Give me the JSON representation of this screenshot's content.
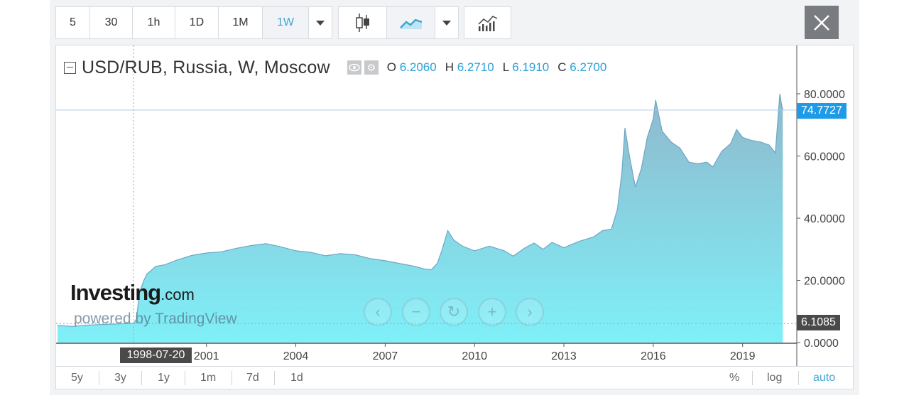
{
  "toolbar": {
    "intervals": [
      "5",
      "30",
      "1h",
      "1D",
      "1M",
      "1W"
    ],
    "active_interval": "1W",
    "chart_type_icons": [
      "candlestick-icon",
      "line-chart-icon"
    ],
    "indicators_icon": "indicators-icon"
  },
  "legend": {
    "title": "USD/RUB, Russia, W, Moscow",
    "o_label": "O",
    "o_value": "6.2060",
    "h_label": "H",
    "h_value": "6.2710",
    "l_label": "L",
    "l_value": "6.1910",
    "c_label": "C",
    "c_value": "6.2700"
  },
  "watermark": {
    "brand": "Investing",
    "brand_suffix": ".com",
    "powered": "powered by TradingView"
  },
  "axis_tags": {
    "last_price": "74.7727",
    "crosshair_price": "6.1085",
    "crosshair_date": "1998-07-20"
  },
  "bottom_bar": {
    "ranges": [
      "5y",
      "3y",
      "1y",
      "1m",
      "7d",
      "1d"
    ],
    "options": [
      "%",
      "log",
      "auto"
    ],
    "active_option": "auto"
  },
  "colors": {
    "accent": "#3fa5d4",
    "area_top": "#8fb8cc",
    "area_bottom": "#7ff0f8",
    "line": "#6fa6c4",
    "last_price_tag": "#1e9be8",
    "crosshair_tag": "#4a4a4a"
  },
  "chart_data": {
    "type": "area",
    "title": "USD/RUB, Russia, W, Moscow",
    "xlabel": "",
    "ylabel": "",
    "x_ticks": [
      "2001",
      "2004",
      "2007",
      "2010",
      "2013",
      "2016",
      "2019"
    ],
    "y_ticks": [
      "0.0000",
      "20.0000",
      "40.0000",
      "60.0000",
      "80.0000"
    ],
    "xlim": [
      1996.0,
      2020.7
    ],
    "ylim": [
      0,
      80
    ],
    "grid": false,
    "series": [
      {
        "points": [
          [
            1996.0,
            5.5
          ],
          [
            1996.5,
            5.2
          ],
          [
            1997.0,
            5.6
          ],
          [
            1997.5,
            5.8
          ],
          [
            1998.0,
            6.0
          ],
          [
            1998.55,
            6.2
          ],
          [
            1998.65,
            7.5
          ],
          [
            1998.75,
            16.0
          ],
          [
            1998.9,
            20.0
          ],
          [
            1999.0,
            22.0
          ],
          [
            1999.3,
            24.5
          ],
          [
            1999.6,
            25.0
          ],
          [
            2000.0,
            26.5
          ],
          [
            2000.5,
            28.0
          ],
          [
            2001.0,
            28.8
          ],
          [
            2001.5,
            29.2
          ],
          [
            2002.0,
            30.3
          ],
          [
            2002.5,
            31.2
          ],
          [
            2003.0,
            31.8
          ],
          [
            2003.5,
            30.8
          ],
          [
            2004.0,
            29.5
          ],
          [
            2004.5,
            29.0
          ],
          [
            2005.0,
            27.9
          ],
          [
            2005.5,
            28.6
          ],
          [
            2006.0,
            28.2
          ],
          [
            2006.5,
            27.0
          ],
          [
            2007.0,
            26.3
          ],
          [
            2007.5,
            25.4
          ],
          [
            2008.0,
            24.5
          ],
          [
            2008.3,
            23.7
          ],
          [
            2008.55,
            23.4
          ],
          [
            2008.75,
            25.5
          ],
          [
            2008.9,
            29.5
          ],
          [
            2009.1,
            36.0
          ],
          [
            2009.3,
            33.0
          ],
          [
            2009.6,
            31.0
          ],
          [
            2010.0,
            29.5
          ],
          [
            2010.5,
            31.0
          ],
          [
            2011.0,
            29.5
          ],
          [
            2011.3,
            27.8
          ],
          [
            2011.7,
            30.5
          ],
          [
            2012.0,
            32.0
          ],
          [
            2012.3,
            30.0
          ],
          [
            2012.6,
            32.2
          ],
          [
            2013.0,
            30.5
          ],
          [
            2013.5,
            32.5
          ],
          [
            2014.0,
            34.0
          ],
          [
            2014.3,
            36.0
          ],
          [
            2014.6,
            36.5
          ],
          [
            2014.8,
            43.0
          ],
          [
            2014.95,
            55.0
          ],
          [
            2015.05,
            69.0
          ],
          [
            2015.2,
            60.0
          ],
          [
            2015.4,
            50.0
          ],
          [
            2015.6,
            56.0
          ],
          [
            2015.8,
            66.0
          ],
          [
            2016.0,
            72.0
          ],
          [
            2016.08,
            78.0
          ],
          [
            2016.3,
            68.0
          ],
          [
            2016.6,
            64.5
          ],
          [
            2016.9,
            62.5
          ],
          [
            2017.2,
            58.0
          ],
          [
            2017.5,
            57.5
          ],
          [
            2017.8,
            58.0
          ],
          [
            2018.0,
            56.5
          ],
          [
            2018.3,
            61.5
          ],
          [
            2018.6,
            64.0
          ],
          [
            2018.8,
            68.5
          ],
          [
            2019.0,
            66.0
          ],
          [
            2019.3,
            65.0
          ],
          [
            2019.6,
            64.5
          ],
          [
            2019.9,
            63.5
          ],
          [
            2020.1,
            61.0
          ],
          [
            2020.25,
            80.0
          ],
          [
            2020.3,
            77.0
          ],
          [
            2020.35,
            74.77
          ]
        ]
      }
    ],
    "last_value": 74.7727,
    "crosshair": {
      "x": 1998.55,
      "y": 6.1085
    }
  }
}
